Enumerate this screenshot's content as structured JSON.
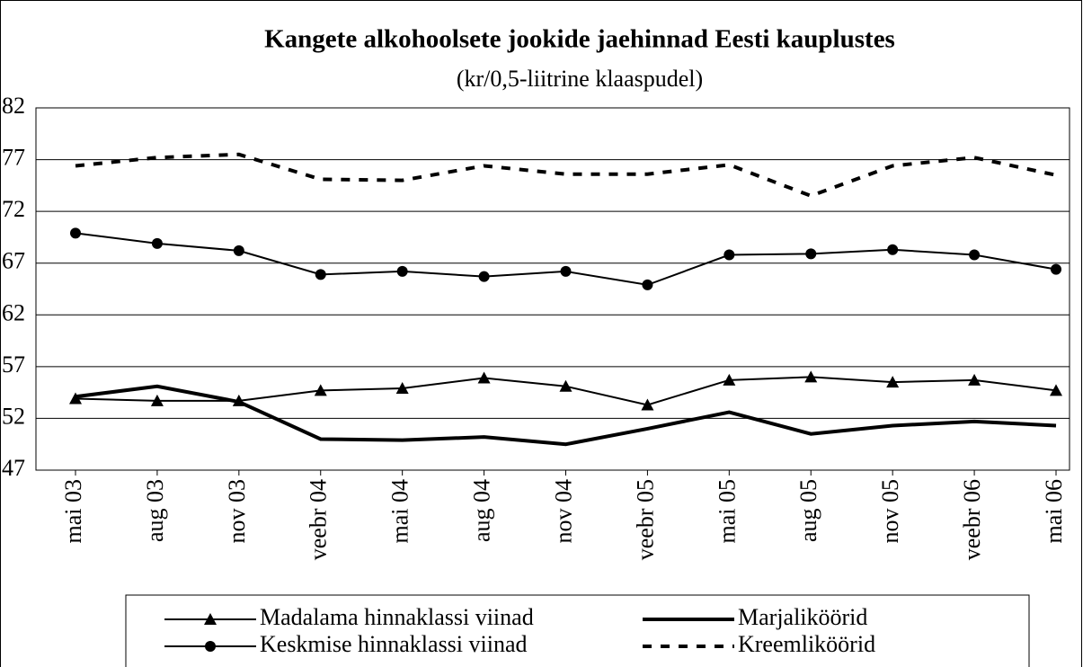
{
  "chart_data": {
    "type": "line",
    "title": "Kangete alkohoolsete jookide jaehinnad Eesti kauplustes",
    "subtitle": "(kr/0,5-liitrine klaaspudel)",
    "categories": [
      "mai 03",
      "aug 03",
      "nov 03",
      "veebr 04",
      "mai 04",
      "aug 04",
      "nov 04",
      "veebr 05",
      "mai 05",
      "aug 05",
      "nov 05",
      "veebr 06",
      "mai 06"
    ],
    "series": [
      {
        "name": "Madalama hinnaklassi viinad",
        "color": "#000000",
        "marker": "triangle",
        "width": 2,
        "dash": "none",
        "values": [
          53.9,
          53.7,
          53.7,
          54.7,
          54.9,
          55.9,
          55.1,
          53.3,
          55.7,
          56.0,
          55.5,
          55.7,
          54.7
        ]
      },
      {
        "name": "Marjaliköörid",
        "color": "#000000",
        "marker": "none",
        "width": 4,
        "dash": "none",
        "values": [
          54.1,
          55.1,
          53.6,
          50.0,
          49.9,
          50.2,
          49.5,
          51.0,
          52.6,
          50.5,
          51.3,
          51.7,
          51.3
        ]
      },
      {
        "name": "Keskmise hinnaklassi viinad",
        "color": "#000000",
        "marker": "circle",
        "width": 2,
        "dash": "none",
        "values": [
          69.9,
          68.9,
          68.2,
          65.9,
          66.2,
          65.7,
          66.2,
          64.9,
          67.8,
          67.9,
          68.3,
          67.8,
          66.4
        ]
      },
      {
        "name": "Kreemliköörid",
        "color": "#000000",
        "marker": "none",
        "width": 4,
        "dash": "10 10",
        "values": [
          76.4,
          77.2,
          77.5,
          75.1,
          75.0,
          76.4,
          75.6,
          75.6,
          76.5,
          73.5,
          76.4,
          77.2,
          75.5
        ]
      }
    ],
    "ylim": [
      47,
      82
    ],
    "yticks": [
      47,
      52,
      57,
      62,
      67,
      72,
      77,
      82
    ],
    "grid": true,
    "legend": "bottom"
  }
}
